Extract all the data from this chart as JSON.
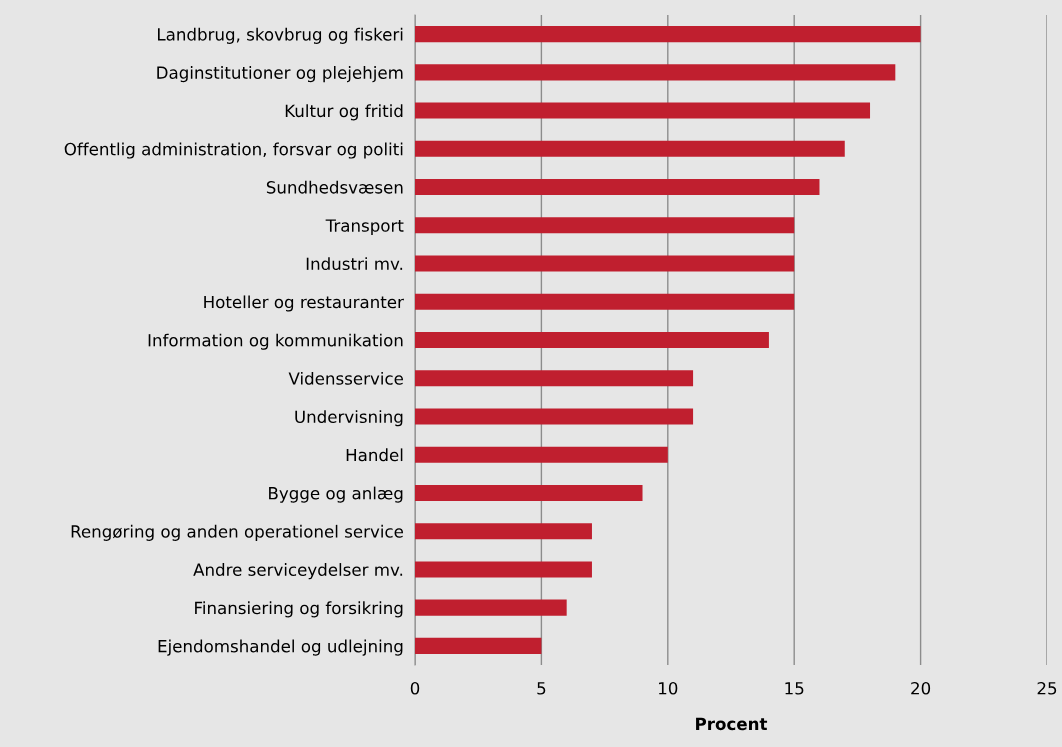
{
  "chart_data": {
    "type": "bar",
    "orientation": "horizontal",
    "xlabel": "Procent",
    "categories": [
      "Landbrug, skovbrug og fiskeri",
      "Daginstitutioner og plejehjem",
      "Kultur og fritid",
      "Offentlig administration, forsvar og politi",
      "Sundhedsvæsen",
      "Transport",
      "Industri mv.",
      "Hoteller og restauranter",
      "Information og kommunikation",
      "Vidensservice",
      "Undervisning",
      "Handel",
      "Bygge og anlæg",
      "Rengøring og anden operationel service",
      "Andre serviceydelser mv.",
      "Finansiering og forsikring",
      "Ejendomshandel og udlejning"
    ],
    "values": [
      20,
      19,
      18,
      17,
      16,
      15,
      15,
      15,
      14,
      11,
      11,
      10,
      9,
      7,
      7,
      6,
      5
    ],
    "color": "#c01f2f",
    "xlim": [
      0,
      25
    ],
    "xticks": [
      0,
      5,
      10,
      15,
      20,
      25
    ],
    "grid": "x",
    "legend": false
  }
}
